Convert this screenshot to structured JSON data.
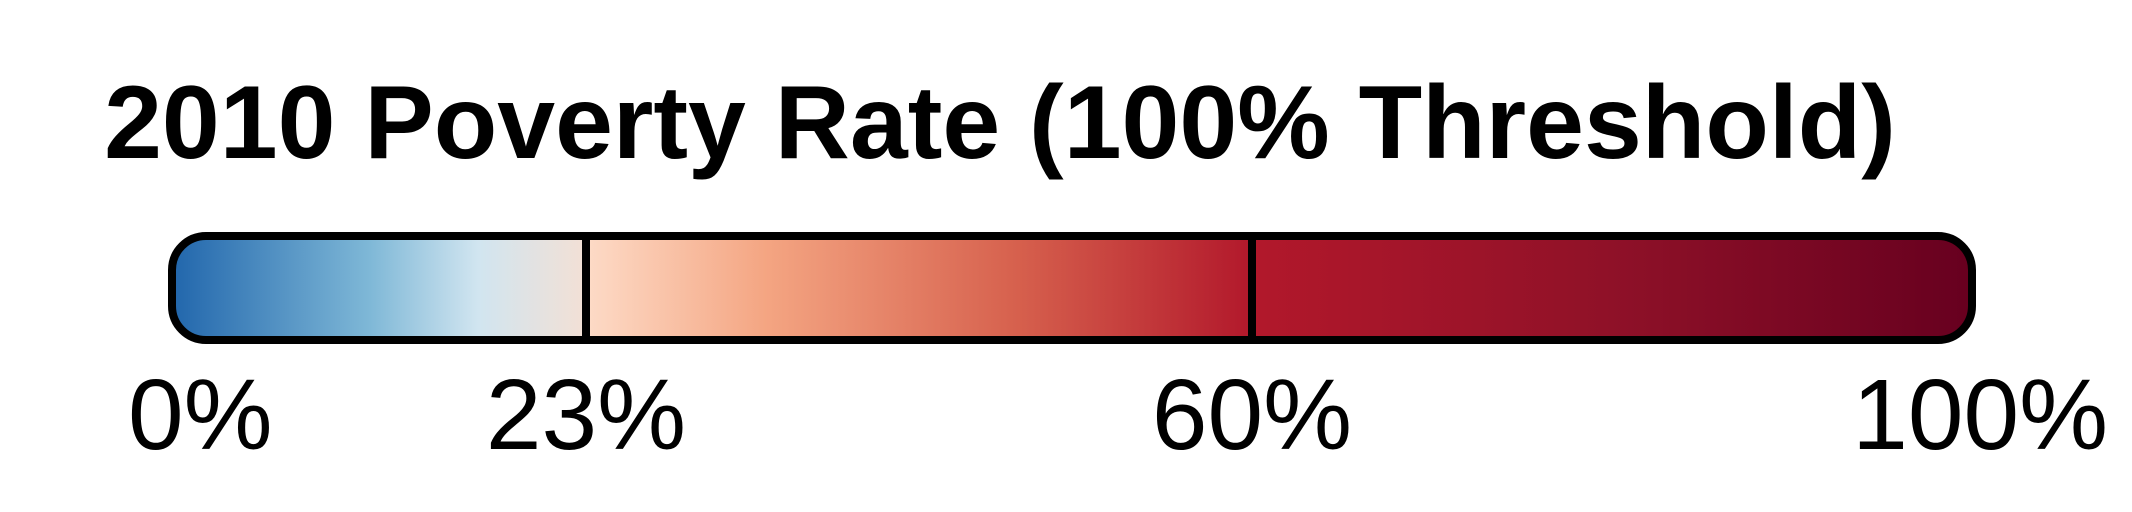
{
  "chart_data": {
    "type": "color-scale-legend",
    "title": "2010 Poverty Rate (100% Threshold)",
    "domain": [
      0,
      100
    ],
    "breakpoints": [
      0,
      23,
      60,
      100
    ],
    "tick_labels": [
      "0%",
      "23%",
      "60%",
      "100%"
    ],
    "stops": [
      {
        "value": 0,
        "color": "#2166ac"
      },
      {
        "value": 11,
        "color": "#7fb8d7"
      },
      {
        "value": 17,
        "color": "#d1e5f0"
      },
      {
        "value": 23,
        "color": "#f3e0d5"
      },
      {
        "value": 23,
        "color": "#fddbc7"
      },
      {
        "value": 33,
        "color": "#f4a582"
      },
      {
        "value": 47,
        "color": "#d6604d"
      },
      {
        "value": 60,
        "color": "#b2182b"
      },
      {
        "value": 80,
        "color": "#8f1128"
      },
      {
        "value": 100,
        "color": "#67001f"
      }
    ]
  }
}
